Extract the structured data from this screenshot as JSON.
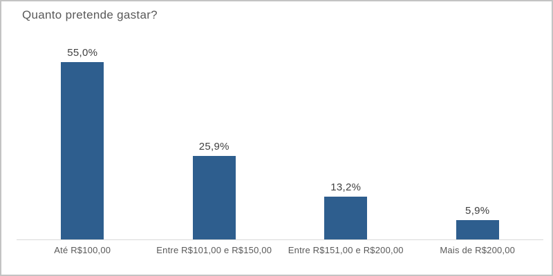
{
  "chart_data": {
    "type": "bar",
    "title": "Quanto pretende gastar?",
    "categories": [
      "Até R$100,00",
      "Entre R$101,00 e R$150,00",
      "Entre R$151,00 e R$200,00",
      "Mais de R$200,00"
    ],
    "values": [
      55.0,
      25.9,
      13.2,
      5.9
    ],
    "value_labels": [
      "55,0%",
      "25,9%",
      "13,2%",
      "5,9%"
    ],
    "xlabel": "",
    "ylabel": "",
    "ylim": [
      0,
      60
    ],
    "grid": false,
    "legend": false,
    "data_labels": true,
    "bar_color": "#2E5E8E",
    "axis_line_color": "#D9D9D9",
    "title_color": "#595959",
    "label_color": "#595959",
    "value_label_color": "#404040"
  }
}
